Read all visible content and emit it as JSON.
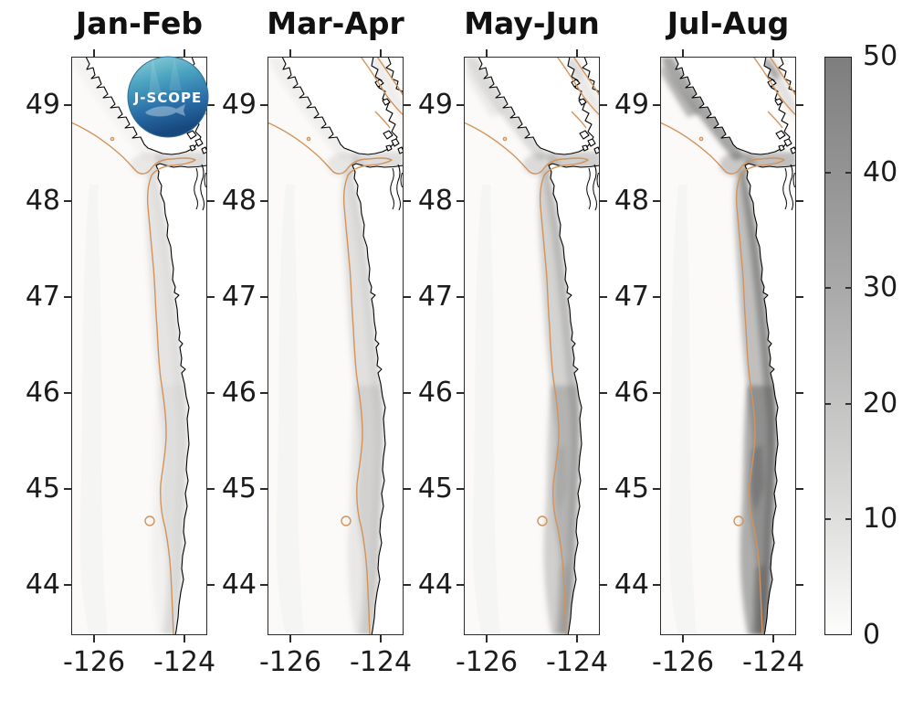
{
  "figure": {
    "background": "#ffffff"
  },
  "panels": [
    {
      "id": "jan-feb",
      "title": "Jan-Feb",
      "shading": {
        "shelf": 0.14,
        "core": 0.05,
        "south": 0.06,
        "entrance": 0.12,
        "strait": 0.2,
        "vi": 0.05,
        "georgia": 0.08,
        "streaks": 0
      }
    },
    {
      "id": "mar-apr",
      "title": "Mar-Apr",
      "shading": {
        "shelf": 0.17,
        "core": 0.08,
        "south": 0.12,
        "entrance": 0.13,
        "strait": 0.18,
        "vi": 0.07,
        "georgia": 0.08,
        "streaks": 0
      }
    },
    {
      "id": "may-jun",
      "title": "May-Jun",
      "shading": {
        "shelf": 0.26,
        "core": 0.22,
        "south": 0.28,
        "entrance": 0.2,
        "strait": 0.28,
        "vi": 0.2,
        "georgia": 0.11,
        "streaks": 0.1
      }
    },
    {
      "id": "jul-aug",
      "title": "Jul-Aug",
      "shading": {
        "shelf": 0.38,
        "core": 0.52,
        "south": 0.5,
        "entrance": 0.32,
        "strait": 0.38,
        "vi": 0.55,
        "georgia": 0.16,
        "streaks": 0.45
      }
    }
  ],
  "axes": {
    "lat_tick_labels": [
      "49",
      "48",
      "47",
      "46",
      "45",
      "44"
    ],
    "lon_tick_labels": [
      "-126",
      "-124"
    ]
  },
  "colorbar": {
    "tick_labels": [
      "0",
      "10",
      "20",
      "30",
      "40",
      "50"
    ],
    "tick_values": [
      0,
      10,
      20,
      30,
      40,
      50
    ],
    "min": 0,
    "max": 50,
    "top_color": "#7e7e7e",
    "bottom_color": "#fdfdfc"
  },
  "logo": {
    "text": "J-SCOPE"
  },
  "colors": {
    "coastline": "#000000",
    "isobath_contour": "#d2935a",
    "shading_gray": "#5f5f5f",
    "panel_border": "#2b2b2b",
    "sea_base": "#fbfaf8",
    "text": "#1c1c1c"
  },
  "chart_data": {
    "type": "heatmap",
    "subtype": "geographic map, 4 seasonal panels, grayscale field over ocean",
    "panels": [
      "Jan-Feb",
      "Mar-Apr",
      "May-Jun",
      "Jul-Aug"
    ],
    "lat_ticks": [
      49,
      48,
      47,
      46,
      45,
      44
    ],
    "lon_ticks": [
      -126,
      -124
    ],
    "lat_range": [
      43.5,
      49.5
    ],
    "lon_range": [
      -126.5,
      -123.5
    ],
    "colorbar": {
      "min": 0,
      "max": 50,
      "ticks": [
        0,
        10,
        20,
        30,
        40,
        50
      ],
      "colormap": "white-to-dark-gray",
      "position": "right"
    },
    "estimated_coastal_shelf_values": {
      "Jan-Feb": 5,
      "Mar-Apr": 7,
      "May-Jun": 18,
      "Jul-Aug": 35
    },
    "annotations": [
      "J-SCOPE circular logo over first panel"
    ],
    "features": [
      "black coastline of Vancouver Island, Strait of Juan de Fuca, Strait of Georgia, Washington and Oregon coast",
      "orange shelf-break (isobath) contour running parallel to the coast with a small closed loop near 44.6N",
      "gray shaded field intensifies along the coast from Jan-Feb (near 0) to Jul-Aug (up to ~40-50 nearshore)"
    ],
    "grid": false,
    "legend": false
  }
}
